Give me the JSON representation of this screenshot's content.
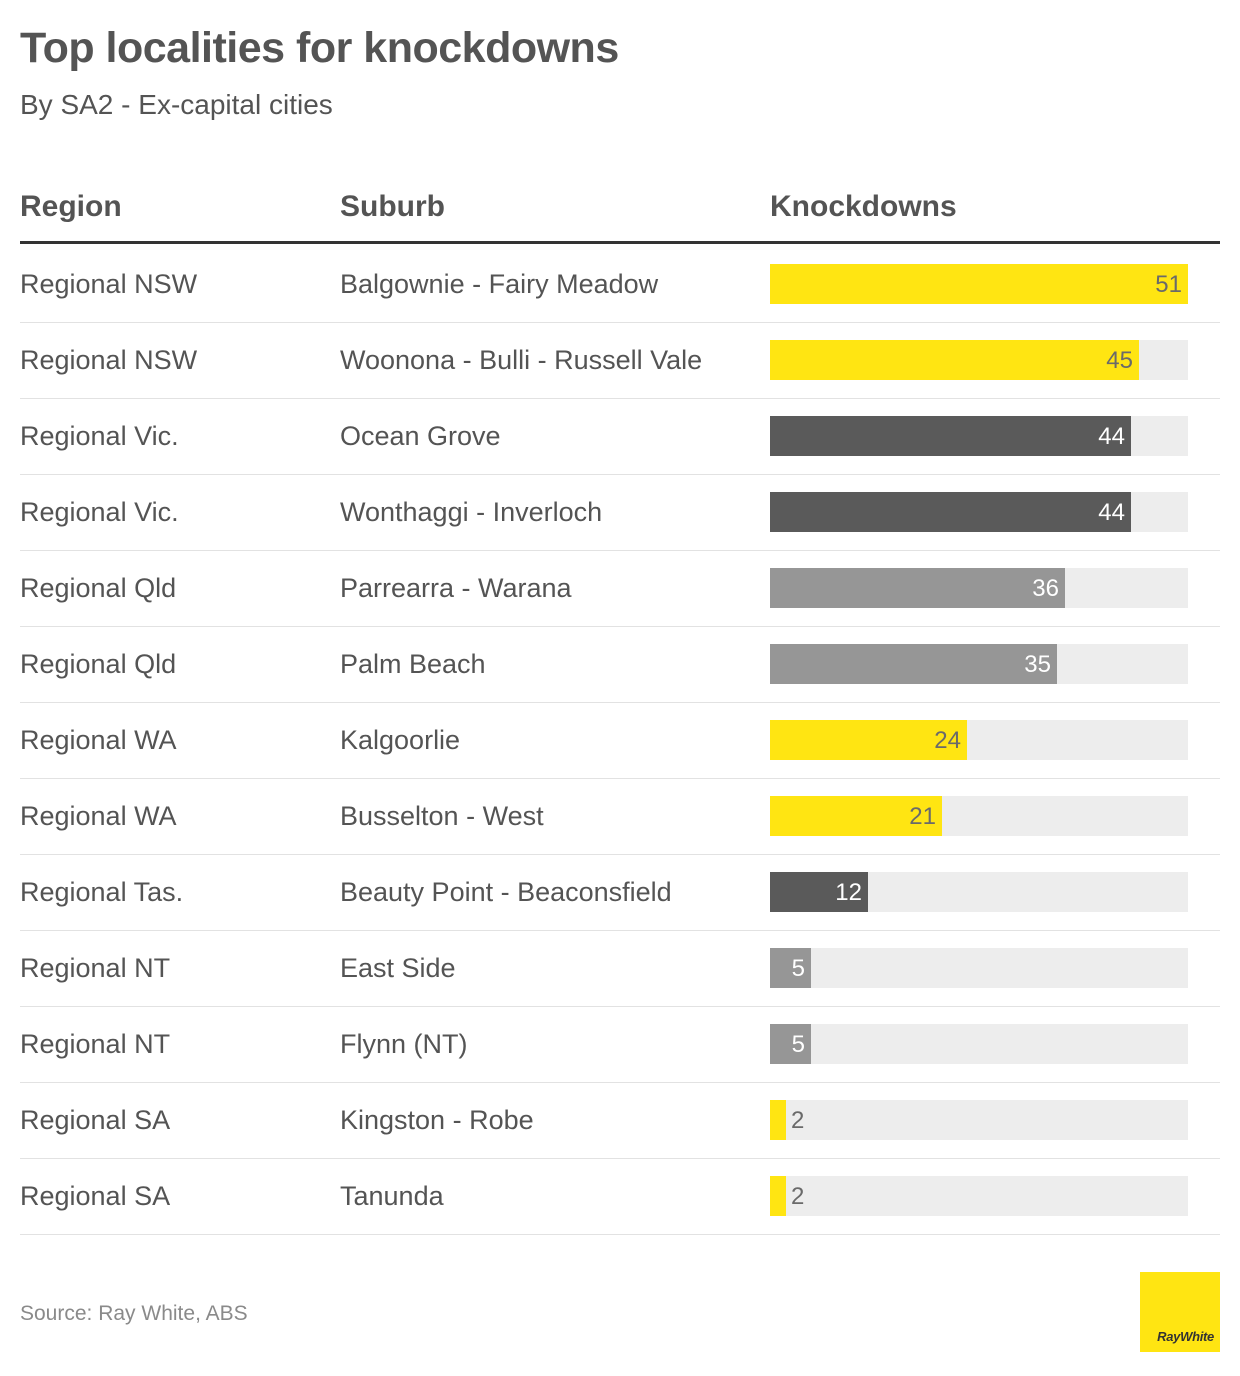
{
  "header": {
    "title": "Top localities for knockdowns",
    "subtitle": "By SA2 - Ex-capital cities"
  },
  "columns": {
    "region": "Region",
    "suburb": "Suburb",
    "knockdowns": "Knockdowns"
  },
  "colors": {
    "yellow": "#ffe512",
    "dark": "#5a5a5a",
    "grey": "#969696",
    "track": "#ededed"
  },
  "chart_data": {
    "type": "table",
    "max_value": 51,
    "rows": [
      {
        "region": "Regional NSW",
        "suburb": "Balgownie - Fairy Meadow",
        "value": 51,
        "color": "#ffe512"
      },
      {
        "region": "Regional NSW",
        "suburb": "Woonona - Bulli - Russell Vale",
        "value": 45,
        "color": "#ffe512"
      },
      {
        "region": "Regional Vic.",
        "suburb": "Ocean Grove",
        "value": 44,
        "color": "#5a5a5a"
      },
      {
        "region": "Regional Vic.",
        "suburb": "Wonthaggi - Inverloch",
        "value": 44,
        "color": "#5a5a5a"
      },
      {
        "region": "Regional Qld",
        "suburb": "Parrearra - Warana",
        "value": 36,
        "color": "#969696"
      },
      {
        "region": "Regional Qld",
        "suburb": "Palm Beach",
        "value": 35,
        "color": "#969696"
      },
      {
        "region": "Regional WA",
        "suburb": "Kalgoorlie",
        "value": 24,
        "color": "#ffe512"
      },
      {
        "region": "Regional WA",
        "suburb": "Busselton - West",
        "value": 21,
        "color": "#ffe512"
      },
      {
        "region": "Regional Tas.",
        "suburb": "Beauty Point - Beaconsfield",
        "value": 12,
        "color": "#5a5a5a"
      },
      {
        "region": "Regional NT",
        "suburb": "East Side",
        "value": 5,
        "color": "#969696"
      },
      {
        "region": "Regional NT",
        "suburb": "Flynn (NT)",
        "value": 5,
        "color": "#969696"
      },
      {
        "region": "Regional SA",
        "suburb": "Kingston - Robe",
        "value": 2,
        "color": "#ffe512"
      },
      {
        "region": "Regional SA",
        "suburb": "Tanunda",
        "value": 2,
        "color": "#ffe512"
      }
    ]
  },
  "footer": {
    "source": "Source: Ray White, ABS",
    "logo_text": "RayWhite"
  }
}
